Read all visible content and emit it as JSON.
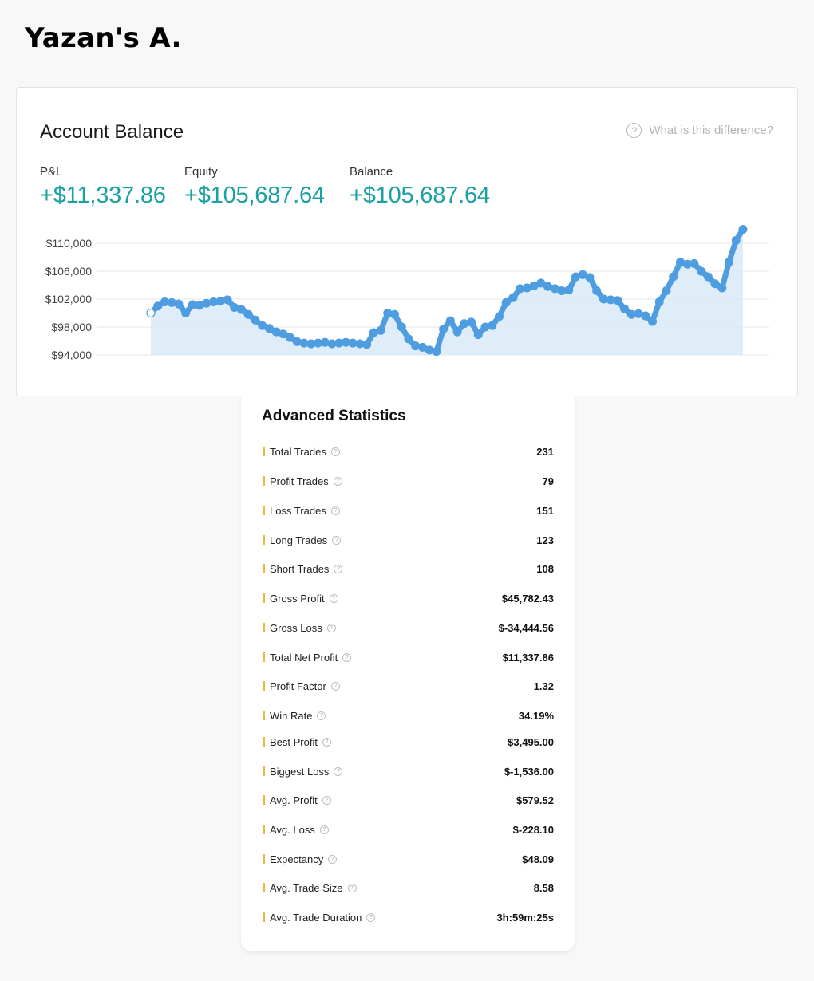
{
  "header": {
    "owner": "Yazan's A."
  },
  "balance_card": {
    "title": "Account Balance",
    "help_text": "What is this difference?",
    "help_icon": "question-circle-icon",
    "metrics": [
      {
        "label": "P&L",
        "value": "+$11,337.86"
      },
      {
        "label": "Equity",
        "value": "+$105,687.64"
      },
      {
        "label": "Balance",
        "value": "+$105,687.64"
      }
    ],
    "colors": {
      "value": "#1ba1a1",
      "line": "#4d9de0",
      "area": "#d8eaf7",
      "grid": "#e4e4e4"
    }
  },
  "chart_data": {
    "type": "area",
    "title": "",
    "xlabel": "",
    "ylabel": "",
    "ylim": [
      94000,
      110000
    ],
    "yticks": [
      110000,
      106000,
      102000,
      98000,
      94000
    ],
    "ytick_labels": [
      "$110,000",
      "$106,000",
      "$102,000",
      "$98,000",
      "$94,000"
    ],
    "grid": true,
    "series": [
      {
        "values": [
          100000,
          101000,
          101600,
          101500,
          101300,
          100000,
          101200,
          101100,
          101400,
          101600,
          101700,
          101900,
          100800,
          100500,
          99800,
          99000,
          98200,
          97800,
          97300,
          97000,
          96500,
          95900,
          95700,
          95600,
          95700,
          95800,
          95600,
          95700,
          95800,
          95700,
          95600,
          95500,
          97200,
          97500,
          100000,
          99800,
          98000,
          96300,
          95300,
          95100,
          94700,
          94500,
          97700,
          98900,
          97300,
          98500,
          98700,
          96900,
          98000,
          98200,
          99500,
          101500,
          102200,
          103500,
          103600,
          103900,
          104300,
          103800,
          103500,
          103200,
          103300,
          105200,
          105500,
          105100,
          103200,
          102000,
          101900,
          101800,
          100600,
          99800,
          99900,
          99600,
          98800,
          101600,
          103200,
          105200,
          107300,
          107000,
          107100,
          106000,
          105200,
          104200,
          103600,
          107300,
          110400,
          112000
        ]
      }
    ]
  },
  "stats": {
    "title": "Advanced Statistics",
    "info_icon": "question-circle-icon",
    "accent": "#f3b63c",
    "rows": [
      {
        "label": "Total Trades",
        "value": "231"
      },
      {
        "label": "Profit Trades",
        "value": "79"
      },
      {
        "label": "Loss Trades",
        "value": "151"
      },
      {
        "label": "Long Trades",
        "value": "123"
      },
      {
        "label": "Short Trades",
        "value": "108"
      },
      {
        "label": "Gross Profit",
        "value": "$45,782.43"
      },
      {
        "label": "Gross Loss",
        "value": "$-34,444.56"
      },
      {
        "label": "Total Net Profit",
        "value": "$11,337.86"
      },
      {
        "label": "Profit Factor",
        "value": "1.32"
      },
      {
        "label": "Win Rate",
        "value": "34.19%"
      },
      {
        "label": "Best Profit",
        "value": "$3,495.00"
      },
      {
        "label": "Biggest Loss",
        "value": "$-1,536.00"
      },
      {
        "label": "Avg. Profit",
        "value": "$579.52"
      },
      {
        "label": "Avg. Loss",
        "value": "$-228.10"
      },
      {
        "label": "Expectancy",
        "value": "$48.09"
      },
      {
        "label": "Avg. Trade Size",
        "value": "8.58"
      },
      {
        "label": "Avg. Trade Duration",
        "value": "3h:59m:25s"
      }
    ]
  }
}
